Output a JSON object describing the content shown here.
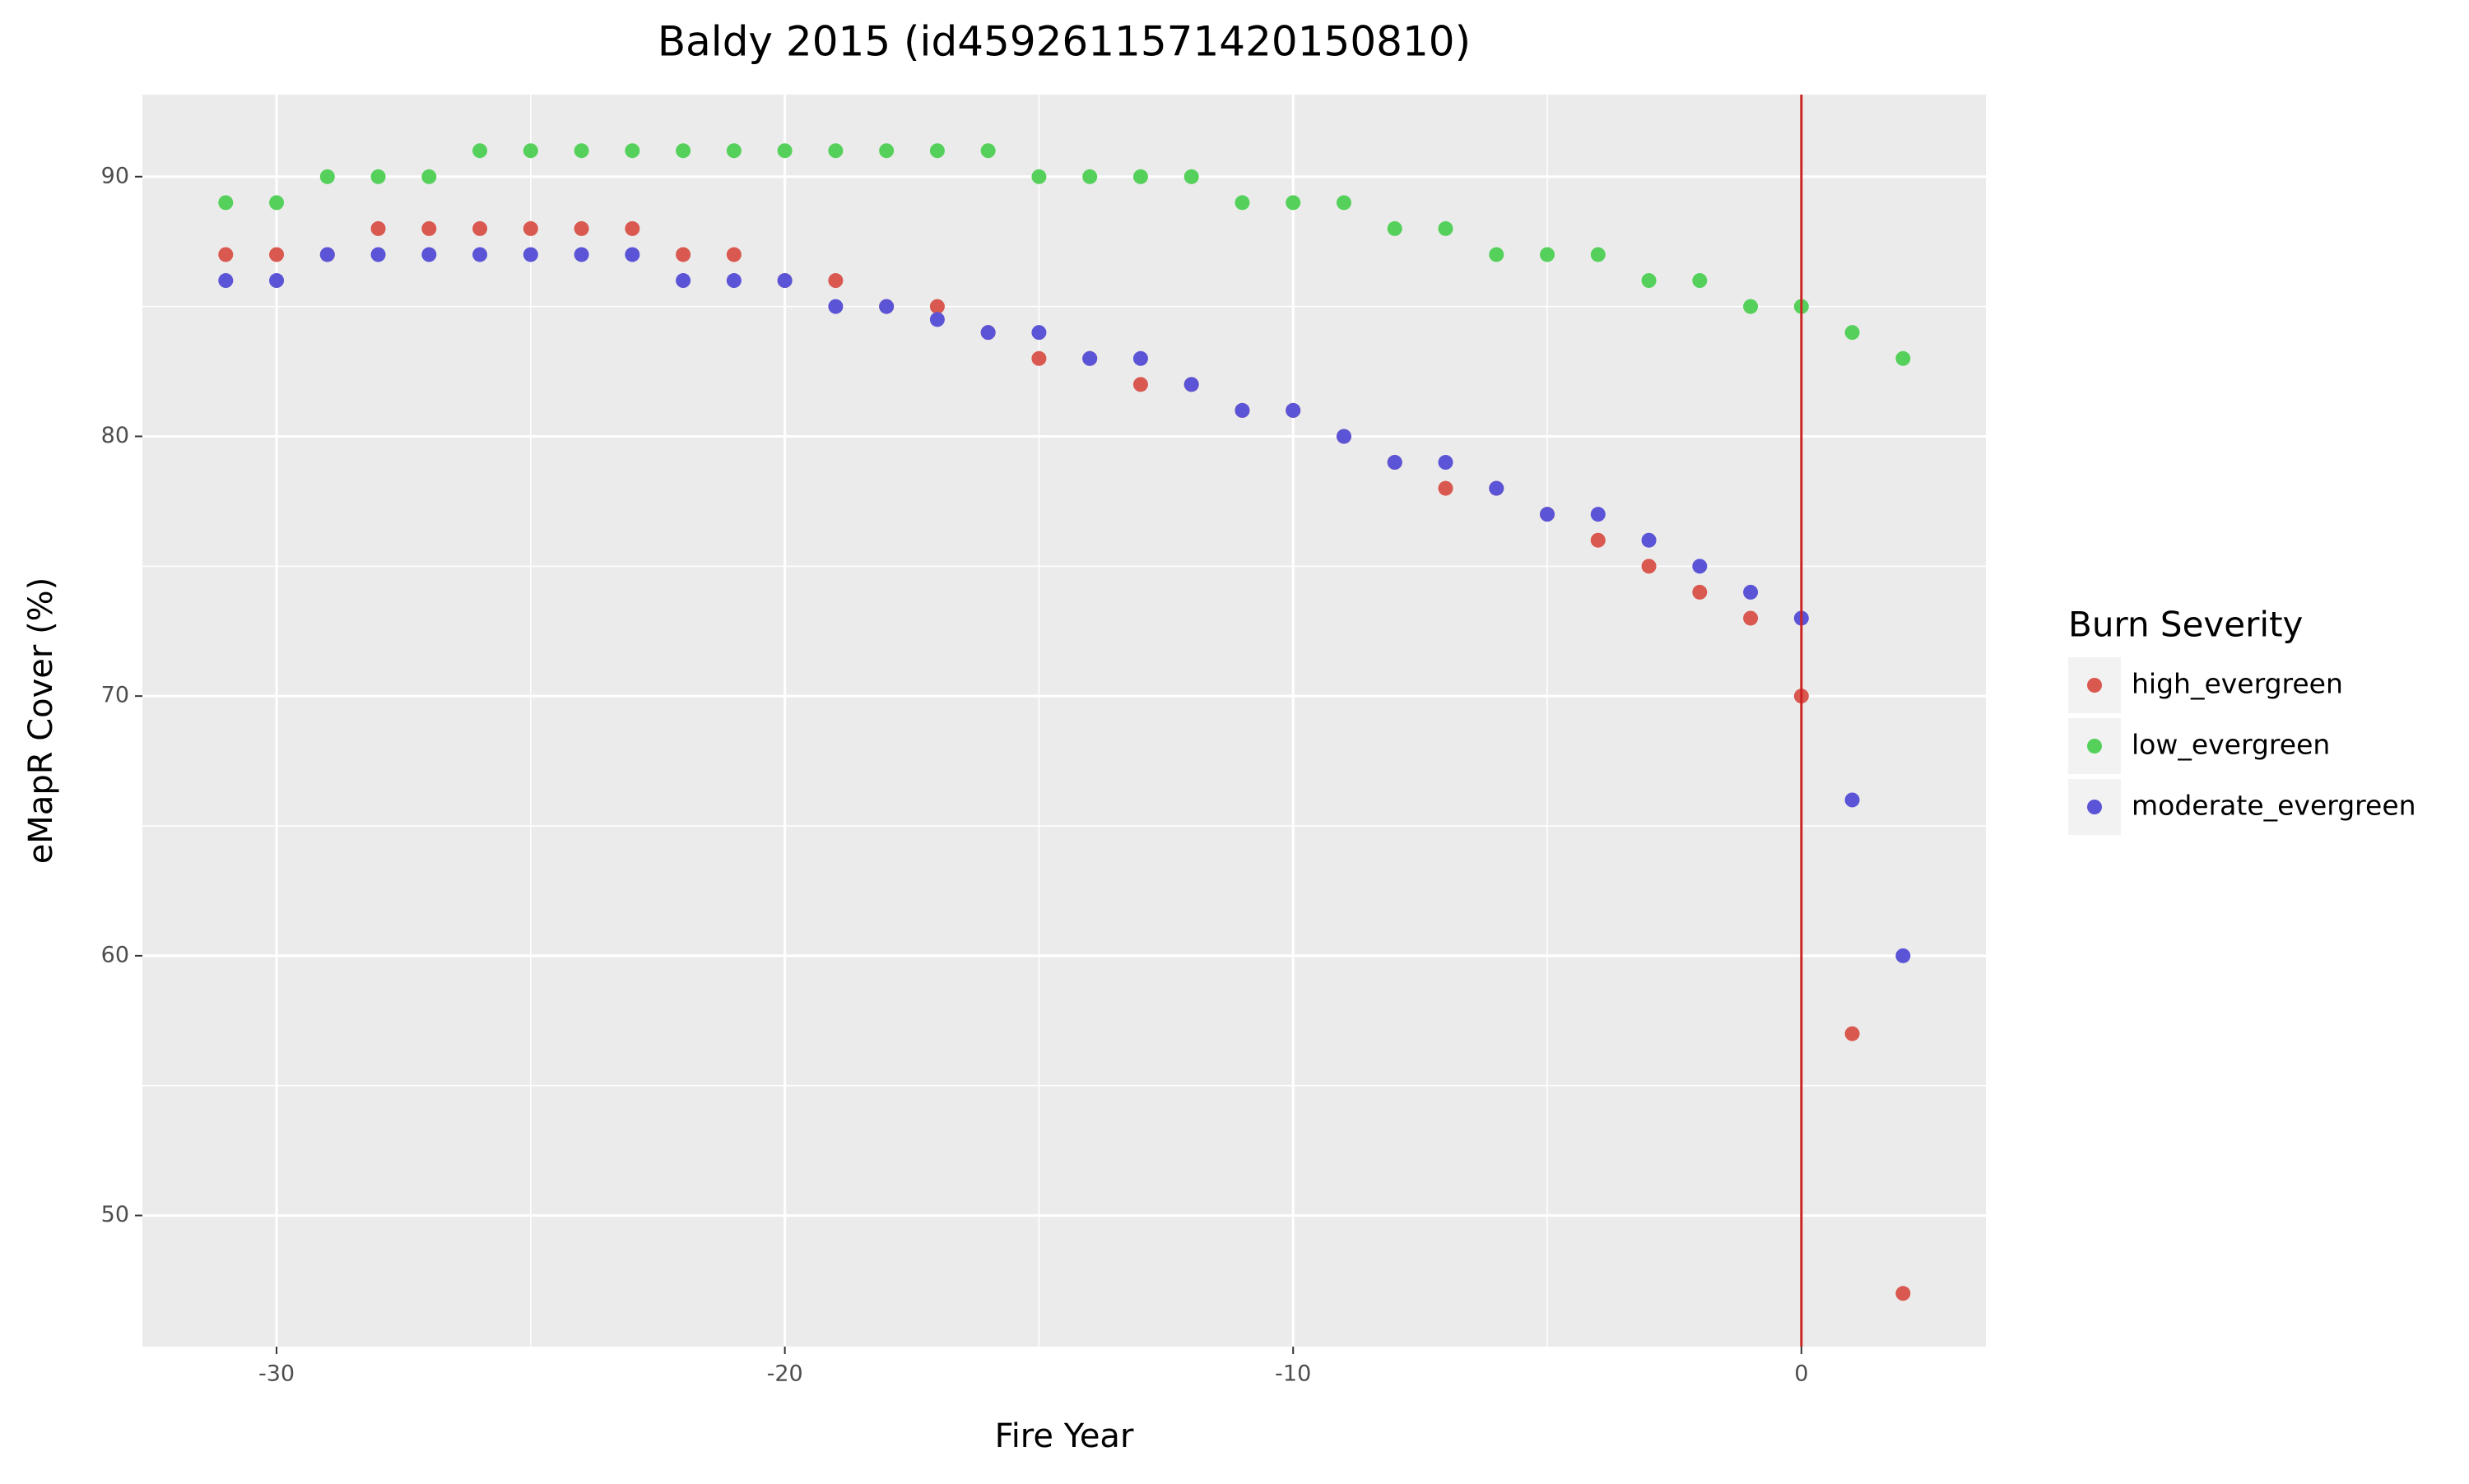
{
  "chart_data": {
    "type": "scatter",
    "title": "Baldy 2015 (id45926115714201508​10)",
    "x_label": "Fire Year",
    "y_label": "eMapR Cover (%)",
    "legend_title": "Burn Severity",
    "legend_position": "right",
    "grid": true,
    "xlim": [
      -32.64,
      3.63
    ],
    "ylim": [
      44.95,
      93.16
    ],
    "xticks": [
      -30,
      -20,
      -10,
      0
    ],
    "yticks": [
      50,
      60,
      70,
      80,
      90
    ],
    "vline": {
      "x": 0,
      "color": "#cc2222"
    },
    "series": [
      {
        "name": "high_evergreen",
        "color": "#d9584f",
        "x": [
          -31,
          -30,
          -29,
          -28,
          -27,
          -26,
          -25,
          -24,
          -23,
          -22,
          -21,
          -20,
          -19,
          -18,
          -17,
          -16,
          -15,
          -14,
          -13,
          -12,
          -11,
          -10,
          -9,
          -8,
          -7,
          -6,
          -5,
          -4,
          -3,
          -2,
          -1,
          0,
          1,
          2
        ],
        "values": [
          87,
          87,
          87,
          88,
          88,
          88,
          88,
          88,
          88,
          87,
          87,
          86,
          86,
          85,
          85,
          84,
          83,
          83,
          82,
          82,
          81,
          81,
          80,
          79,
          78,
          78,
          77,
          76,
          75,
          74,
          73,
          70,
          57,
          47
        ]
      },
      {
        "name": "low_evergreen",
        "color": "#55d15b",
        "x": [
          -31,
          -30,
          -29,
          -28,
          -27,
          -26,
          -25,
          -24,
          -23,
          -22,
          -21,
          -20,
          -19,
          -18,
          -17,
          -16,
          -15,
          -14,
          -13,
          -12,
          -11,
          -10,
          -9,
          -8,
          -7,
          -6,
          -5,
          -4,
          -3,
          -2,
          -1,
          0,
          1,
          2
        ],
        "values": [
          89,
          89,
          90,
          90,
          90,
          91,
          91,
          91,
          91,
          91,
          91,
          91,
          91,
          91,
          91,
          91,
          90,
          90,
          90,
          90,
          89,
          89,
          89,
          88,
          88,
          87,
          87,
          87,
          86,
          86,
          85,
          85,
          84,
          83
        ]
      },
      {
        "name": "moderate_evergreen",
        "color": "#5b54d6",
        "x": [
          -31,
          -30,
          -29,
          -28,
          -27,
          -26,
          -25,
          -24,
          -23,
          -22,
          -21,
          -20,
          -19,
          -18,
          -17,
          -16,
          -15,
          -14,
          -13,
          -12,
          -11,
          -10,
          -9,
          -8,
          -7,
          -6,
          -5,
          -4,
          -3,
          -2,
          -1,
          0,
          1,
          2
        ],
        "values": [
          86,
          86,
          87,
          87,
          87,
          87,
          87,
          87,
          87,
          86,
          86,
          86,
          85,
          85,
          84.5,
          84,
          84,
          83,
          83,
          82,
          81,
          81,
          80,
          79,
          79,
          78,
          77,
          77,
          76,
          75,
          74,
          73,
          66,
          60
        ]
      }
    ]
  }
}
